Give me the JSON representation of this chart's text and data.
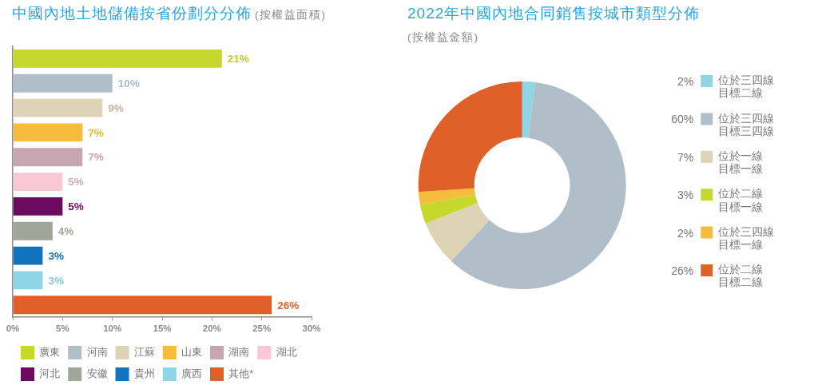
{
  "chart_data": [
    {
      "type": "bar",
      "orientation": "horizontal",
      "title": "中國內地土地儲備按省份劃分分佈",
      "subtitle": "(按權益面積)",
      "categories": [
        null,
        null,
        null,
        null,
        null,
        null,
        null,
        null,
        null,
        null,
        null
      ],
      "series": [
        {
          "name": "廣東",
          "color": "#c5d92d",
          "values": [
            21,
            null,
            null,
            null,
            null,
            null,
            null,
            null,
            null,
            null,
            null
          ],
          "value_labels": [
            "21%",
            null,
            null,
            null,
            null,
            null,
            null,
            null,
            null,
            null,
            null
          ]
        },
        {
          "name": "河南",
          "color": "#b0bec7",
          "values": [
            null,
            10,
            null,
            null,
            null,
            null,
            null,
            null,
            null,
            null,
            null
          ],
          "value_labels": [
            null,
            "10%",
            null,
            null,
            null,
            null,
            null,
            null,
            null,
            null,
            null
          ]
        },
        {
          "name": "江蘇",
          "color": "#ddd3b5",
          "values": [
            null,
            null,
            9,
            null,
            null,
            null,
            null,
            null,
            null,
            null,
            null
          ],
          "value_labels": [
            null,
            null,
            "9%",
            null,
            null,
            null,
            null,
            null,
            null,
            null,
            null
          ]
        },
        {
          "name": "山東",
          "color": "#f6bc3c",
          "values": [
            null,
            null,
            null,
            7,
            null,
            null,
            null,
            null,
            null,
            null,
            null
          ],
          "value_labels": [
            null,
            null,
            null,
            "7%",
            null,
            null,
            null,
            null,
            null,
            null,
            null
          ]
        },
        {
          "name": "湖南",
          "color": "#c6a6b0",
          "values": [
            null,
            null,
            null,
            null,
            7,
            null,
            null,
            null,
            null,
            null,
            null
          ],
          "value_labels": [
            null,
            null,
            null,
            null,
            "7%",
            null,
            null,
            null,
            null,
            null,
            null
          ]
        },
        {
          "name": "湖北",
          "color": "#f8c9d5",
          "values": [
            null,
            null,
            null,
            null,
            null,
            5,
            null,
            null,
            null,
            null,
            null
          ],
          "value_labels": [
            null,
            null,
            null,
            null,
            null,
            "5%",
            null,
            null,
            null,
            null,
            null
          ]
        },
        {
          "name": "河北",
          "color": "#6b0a5e",
          "values": [
            null,
            null,
            null,
            null,
            null,
            null,
            5,
            null,
            null,
            null,
            null
          ],
          "value_labels": [
            null,
            null,
            null,
            null,
            null,
            null,
            "5%",
            null,
            null,
            null,
            null
          ]
        },
        {
          "name": "安徽",
          "color": "#a0a69a",
          "values": [
            null,
            null,
            null,
            null,
            null,
            null,
            null,
            4,
            null,
            null,
            null
          ],
          "value_labels": [
            null,
            null,
            null,
            null,
            null,
            null,
            null,
            "4%",
            null,
            null,
            null
          ]
        },
        {
          "name": "貴州",
          "color": "#1272bb",
          "values": [
            null,
            null,
            null,
            null,
            null,
            null,
            null,
            null,
            3,
            null,
            null
          ],
          "value_labels": [
            null,
            null,
            null,
            null,
            null,
            null,
            null,
            null,
            "3%",
            null,
            null
          ]
        },
        {
          "name": "廣西",
          "color": "#8ed5e6",
          "values": [
            null,
            null,
            null,
            null,
            null,
            null,
            null,
            null,
            null,
            3,
            null
          ],
          "value_labels": [
            null,
            null,
            null,
            null,
            null,
            null,
            null,
            null,
            null,
            "3%",
            null
          ]
        },
        {
          "name": "其他*",
          "color": "#e06029",
          "values": [
            null,
            null,
            null,
            null,
            null,
            null,
            null,
            null,
            null,
            null,
            26
          ],
          "value_labels": [
            null,
            null,
            null,
            null,
            null,
            null,
            null,
            null,
            null,
            null,
            "26%"
          ]
        }
      ],
      "xlim": [
        0,
        30
      ],
      "xticks": [
        {
          "value": 0,
          "label": "0%"
        },
        {
          "value": 5,
          "label": "5%"
        },
        {
          "value": 10,
          "label": "10%"
        },
        {
          "value": 15,
          "label": "15%"
        },
        {
          "value": 20,
          "label": "20%"
        },
        {
          "value": 25,
          "label": "25%"
        },
        {
          "value": 30,
          "label": "30%"
        }
      ],
      "grid": false,
      "tick_labels": "x",
      "legend": "bottom"
    },
    {
      "type": "donut",
      "title": "2022年中國內地合同銷售按城市類型分佈",
      "subtitle": "(按權益金額)",
      "categories": [
        "位於三四線目標二線",
        "位於三四線目標三四線",
        "位於一線目標一線",
        "位於二線目標一線",
        "位於三四線目標一線",
        "位於二線目標二線"
      ],
      "values": [
        2,
        60,
        7,
        3,
        2,
        26
      ],
      "colors": [
        "#8ed5e6",
        "#b0bec7",
        "#ddd3b5",
        "#c5d92d",
        "#f6bc3c",
        "#e06029"
      ],
      "value_labels": [
        "2%",
        "60%",
        "7%",
        "3%",
        "2%",
        "26%"
      ],
      "legend": "right"
    }
  ]
}
